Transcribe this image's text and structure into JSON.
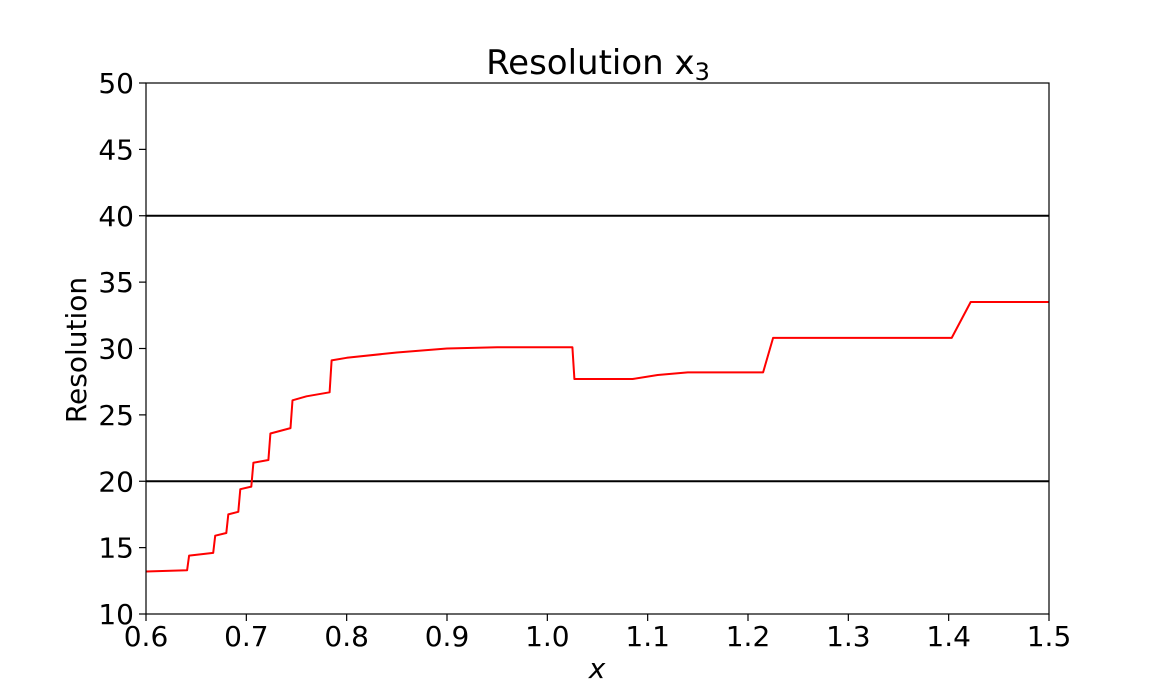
{
  "chart_data": {
    "type": "line",
    "title": "Resolution x",
    "title_subscript": "3",
    "xlabel": "x",
    "ylabel": "Resolution",
    "xlim": [
      0.6,
      1.5
    ],
    "ylim": [
      10,
      50
    ],
    "x_ticks": [
      "0.6",
      "0.7",
      "0.8",
      "0.9",
      "1.0",
      "1.1",
      "1.2",
      "1.3",
      "1.4",
      "1.5"
    ],
    "y_ticks": [
      "10",
      "15",
      "20",
      "25",
      "30",
      "35",
      "40",
      "45",
      "50"
    ],
    "grid": false,
    "reference_lines": [
      {
        "y": 20,
        "color": "#000000"
      },
      {
        "y": 40,
        "color": "#000000"
      }
    ],
    "series": [
      {
        "color": "#ff0000",
        "points": [
          [
            0.6,
            13.2
          ],
          [
            0.641,
            13.3
          ],
          [
            0.643,
            14.4
          ],
          [
            0.667,
            14.6
          ],
          [
            0.669,
            15.9
          ],
          [
            0.68,
            16.1
          ],
          [
            0.682,
            17.5
          ],
          [
            0.692,
            17.7
          ],
          [
            0.694,
            19.4
          ],
          [
            0.705,
            19.6
          ],
          [
            0.707,
            21.4
          ],
          [
            0.722,
            21.6
          ],
          [
            0.724,
            23.6
          ],
          [
            0.744,
            24.0
          ],
          [
            0.746,
            26.1
          ],
          [
            0.76,
            26.4
          ],
          [
            0.783,
            26.7
          ],
          [
            0.785,
            29.1
          ],
          [
            0.8,
            29.3
          ],
          [
            0.85,
            29.7
          ],
          [
            0.9,
            30.0
          ],
          [
            0.95,
            30.1
          ],
          [
            1.0,
            30.1
          ],
          [
            1.025,
            30.1
          ],
          [
            1.027,
            27.7
          ],
          [
            1.05,
            27.7
          ],
          [
            1.085,
            27.7
          ],
          [
            1.11,
            28.0
          ],
          [
            1.14,
            28.2
          ],
          [
            1.215,
            28.2
          ],
          [
            1.225,
            30.8
          ],
          [
            1.403,
            30.8
          ],
          [
            1.422,
            33.5
          ],
          [
            1.5,
            33.5
          ]
        ]
      }
    ]
  }
}
